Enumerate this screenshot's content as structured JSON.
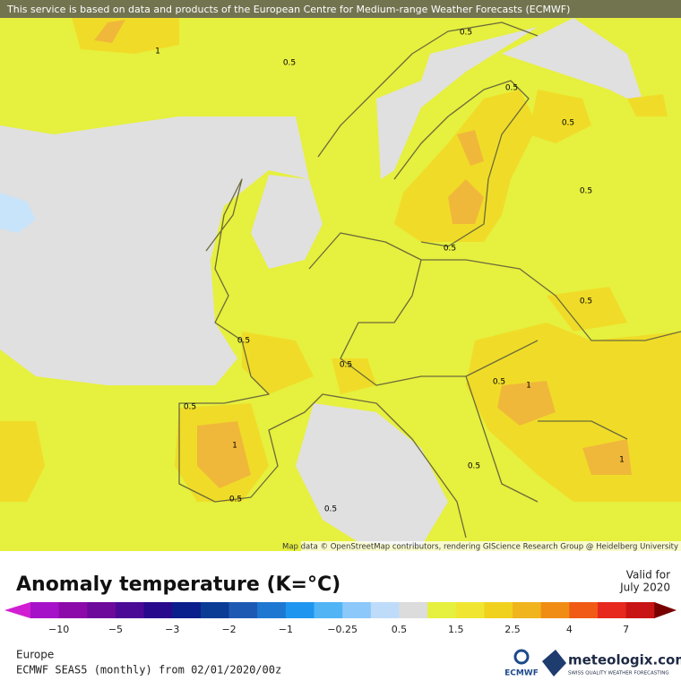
{
  "banner": "This service is based on data and products of the European Centre for Medium-range Weather Forecasts (ECMWF)",
  "contour_labels": [
    "1",
    "0.5",
    "0.5",
    "0.5",
    "0.5",
    "0.5",
    "0.5",
    "0.5",
    "0.5",
    "0.5",
    "0.5",
    "1",
    "0.5",
    "1",
    "0.5",
    "1",
    "0.5",
    "0.5"
  ],
  "attribution": "Map data © OpenStreetMap contributors, rendering GIScience Research Group @ Heidelberg University",
  "title": "Anomaly temperature (K=°C)",
  "valid": {
    "label": "Valid for",
    "date": "July 2020"
  },
  "legend_labels": [
    "−10",
    "−5",
    "−3",
    "−2",
    "−1",
    "−0.25",
    "0.5",
    "1.5",
    "2.5",
    "4",
    "7"
  ],
  "region": "Europe",
  "model": "ECMWF SEAS5 (monthly) from 02/01/2020/00z",
  "logos": {
    "ecmwf": "ECMWF",
    "brand": "meteologix.com",
    "tagline": "SWISS QUALITY WEATHER FORECASTING"
  }
}
